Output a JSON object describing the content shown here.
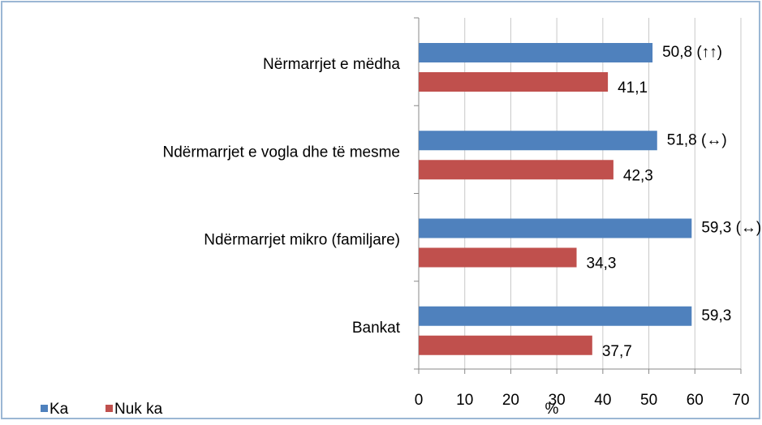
{
  "chart_data": {
    "type": "hbar",
    "categories": [
      "Nërmarrjet e mëdha",
      "Ndërmarrjet e vogla dhe të mesme",
      "Ndërmarrjet mikro (familjare)",
      "Bankat"
    ],
    "series": [
      {
        "name": "Ka",
        "color": "#4f81bd",
        "values": [
          50.8,
          51.8,
          59.3,
          59.3
        ],
        "value_labels": [
          "50,8 (↑↑)",
          "51,8 (↔)",
          "59,3 (↔)",
          "59,3"
        ]
      },
      {
        "name": "Nuk ka",
        "color": "#c0504d",
        "values": [
          41.1,
          42.3,
          34.3,
          37.7
        ],
        "value_labels": [
          "41,1",
          "42,3",
          "34,3",
          "37,7"
        ]
      }
    ],
    "x_label": "%",
    "xlim": [
      0,
      70
    ],
    "xticks": [
      0,
      10,
      20,
      30,
      40,
      50,
      60,
      70
    ],
    "grid": true,
    "legend": "bottom-left"
  }
}
